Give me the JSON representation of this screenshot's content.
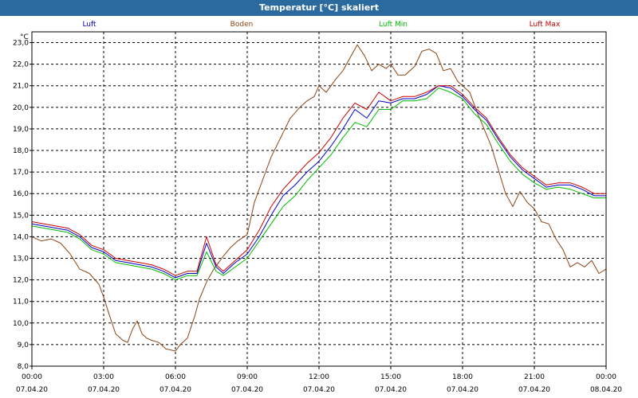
{
  "window": {
    "title": "Temperatur [°C] skaliert"
  },
  "colors": {
    "titlebar": "#2b6a9e",
    "grid": "#000000"
  },
  "chart_data": {
    "type": "line",
    "title": "Temperatur [°C] skaliert",
    "ylabel": "°C",
    "xlabel": "",
    "grid": true,
    "ylim": [
      8.0,
      23.5
    ],
    "xlim_hours": [
      0,
      24
    ],
    "y_ticks": [
      "8,0",
      "9,0",
      "10,0",
      "11,0",
      "12,0",
      "13,0",
      "14,0",
      "15,0",
      "16,0",
      "17,0",
      "18,0",
      "19,0",
      "20,0",
      "21,0",
      "22,0",
      "23,0"
    ],
    "x_ticks": [
      {
        "time": "00:00",
        "date": "07.04.20"
      },
      {
        "time": "03:00",
        "date": "07.04.20"
      },
      {
        "time": "06:00",
        "date": "07.04.20"
      },
      {
        "time": "09:00",
        "date": "07.04.20"
      },
      {
        "time": "12:00",
        "date": "07.04.20"
      },
      {
        "time": "15:00",
        "date": "07.04.20"
      },
      {
        "time": "18:00",
        "date": "07.04.20"
      },
      {
        "time": "21:00",
        "date": "07.04.20"
      },
      {
        "time": "00:00",
        "date": "08.04.20"
      }
    ],
    "series": [
      {
        "name": "Luft",
        "color": "#0000cc",
        "x": [
          0,
          0.5,
          1,
          1.5,
          2,
          2.5,
          3,
          3.5,
          4,
          4.5,
          5,
          5.5,
          6,
          6.5,
          6.9,
          7.3,
          7.7,
          8,
          8.5,
          9,
          9.5,
          10,
          10.5,
          11,
          11.5,
          12,
          12.5,
          13,
          13.5,
          14,
          14.5,
          15,
          15.5,
          16,
          16.5,
          17,
          17.5,
          18,
          18.5,
          19,
          19.5,
          20,
          20.5,
          21,
          21.5,
          22,
          22.5,
          23,
          23.5,
          24
        ],
        "values": [
          14.6,
          14.5,
          14.4,
          14.3,
          14.0,
          13.5,
          13.3,
          12.9,
          12.8,
          12.7,
          12.6,
          12.4,
          12.1,
          12.3,
          12.3,
          13.7,
          12.6,
          12.3,
          12.8,
          13.2,
          14.0,
          15.0,
          15.9,
          16.4,
          17.0,
          17.5,
          18.2,
          19.0,
          19.9,
          19.5,
          20.3,
          20.2,
          20.4,
          20.4,
          20.6,
          21.0,
          20.9,
          20.5,
          19.9,
          19.4,
          18.5,
          17.7,
          17.1,
          16.7,
          16.3,
          16.4,
          16.4,
          16.2,
          15.9,
          15.9
        ]
      },
      {
        "name": "Boden",
        "color": "#8b4513",
        "x": [
          0,
          0.4,
          0.8,
          1.2,
          1.6,
          2,
          2.4,
          2.8,
          3,
          3.2,
          3.5,
          3.8,
          4,
          4.2,
          4.4,
          4.6,
          4.8,
          5,
          5.3,
          5.6,
          6,
          6.2,
          6.5,
          6.8,
          7,
          7.3,
          7.6,
          8,
          8.3,
          8.6,
          9,
          9.3,
          9.7,
          10,
          10.4,
          10.8,
          11.2,
          11.5,
          11.8,
          12,
          12.3,
          12.7,
          13,
          13.3,
          13.6,
          13.9,
          14.2,
          14.5,
          14.8,
          15,
          15.3,
          15.6,
          16,
          16.3,
          16.6,
          16.9,
          17.2,
          17.5,
          17.8,
          18,
          18.3,
          18.6,
          18.9,
          19.2,
          19.5,
          19.8,
          20.1,
          20.4,
          20.7,
          21,
          21.3,
          21.6,
          21.9,
          22.2,
          22.5,
          22.8,
          23.1,
          23.4,
          23.7,
          24
        ],
        "values": [
          14.0,
          13.8,
          13.9,
          13.7,
          13.2,
          12.5,
          12.3,
          11.8,
          11.2,
          10.5,
          9.5,
          9.2,
          9.1,
          9.7,
          10.1,
          9.5,
          9.3,
          9.2,
          9.1,
          8.8,
          8.7,
          9.0,
          9.3,
          10.3,
          11.1,
          11.9,
          12.5,
          13.1,
          13.5,
          13.8,
          14.1,
          15.6,
          16.8,
          17.7,
          18.6,
          19.5,
          20.0,
          20.3,
          20.5,
          21.0,
          20.7,
          21.3,
          21.7,
          22.3,
          22.9,
          22.4,
          21.7,
          22.0,
          21.8,
          22.0,
          21.5,
          21.5,
          21.9,
          22.6,
          22.7,
          22.5,
          21.7,
          21.8,
          21.2,
          21.0,
          20.7,
          19.8,
          19.0,
          18.2,
          17.1,
          16.0,
          15.4,
          16.1,
          15.6,
          15.3,
          14.7,
          14.6,
          13.9,
          13.4,
          12.6,
          12.8,
          12.6,
          12.9,
          12.3,
          12.5
        ]
      },
      {
        "name": "Luft Min",
        "color": "#00bb00",
        "x": [
          0,
          0.5,
          1,
          1.5,
          2,
          2.5,
          3,
          3.5,
          4,
          4.5,
          5,
          5.5,
          6,
          6.5,
          6.9,
          7.3,
          7.7,
          8,
          8.5,
          9,
          9.5,
          10,
          10.5,
          11,
          11.5,
          12,
          12.5,
          13,
          13.5,
          14,
          14.5,
          15,
          15.5,
          16,
          16.5,
          17,
          17.5,
          18,
          18.5,
          19,
          19.5,
          20,
          20.5,
          21,
          21.5,
          22,
          22.5,
          23,
          23.5,
          24
        ],
        "values": [
          14.5,
          14.4,
          14.3,
          14.2,
          13.9,
          13.4,
          13.2,
          12.8,
          12.7,
          12.6,
          12.5,
          12.3,
          12.0,
          12.2,
          12.2,
          13.3,
          12.4,
          12.2,
          12.6,
          13.0,
          13.8,
          14.6,
          15.4,
          15.9,
          16.6,
          17.2,
          17.8,
          18.6,
          19.3,
          19.1,
          19.9,
          19.9,
          20.3,
          20.3,
          20.4,
          20.9,
          20.7,
          20.4,
          19.7,
          19.2,
          18.3,
          17.5,
          16.9,
          16.5,
          16.2,
          16.3,
          16.2,
          16.0,
          15.8,
          15.8
        ]
      },
      {
        "name": "Luft Max",
        "color": "#cc0000",
        "x": [
          0,
          0.5,
          1,
          1.5,
          2,
          2.5,
          3,
          3.5,
          4,
          4.5,
          5,
          5.5,
          6,
          6.5,
          6.9,
          7.3,
          7.7,
          8,
          8.5,
          9,
          9.5,
          10,
          10.5,
          11,
          11.5,
          12,
          12.5,
          13,
          13.5,
          14,
          14.5,
          15,
          15.5,
          16,
          16.5,
          17,
          17.5,
          18,
          18.5,
          19,
          19.5,
          20,
          20.5,
          21,
          21.5,
          22,
          22.5,
          23,
          23.5,
          24
        ],
        "values": [
          14.7,
          14.6,
          14.5,
          14.4,
          14.1,
          13.6,
          13.4,
          13.0,
          12.9,
          12.8,
          12.7,
          12.5,
          12.2,
          12.4,
          12.4,
          14.0,
          12.7,
          12.4,
          12.9,
          13.4,
          14.3,
          15.4,
          16.2,
          16.8,
          17.4,
          17.9,
          18.6,
          19.5,
          20.2,
          19.9,
          20.7,
          20.3,
          20.5,
          20.5,
          20.7,
          21.0,
          21.0,
          20.6,
          20.0,
          19.5,
          18.6,
          17.8,
          17.2,
          16.8,
          16.4,
          16.5,
          16.5,
          16.3,
          16.0,
          16.0
        ]
      }
    ]
  }
}
